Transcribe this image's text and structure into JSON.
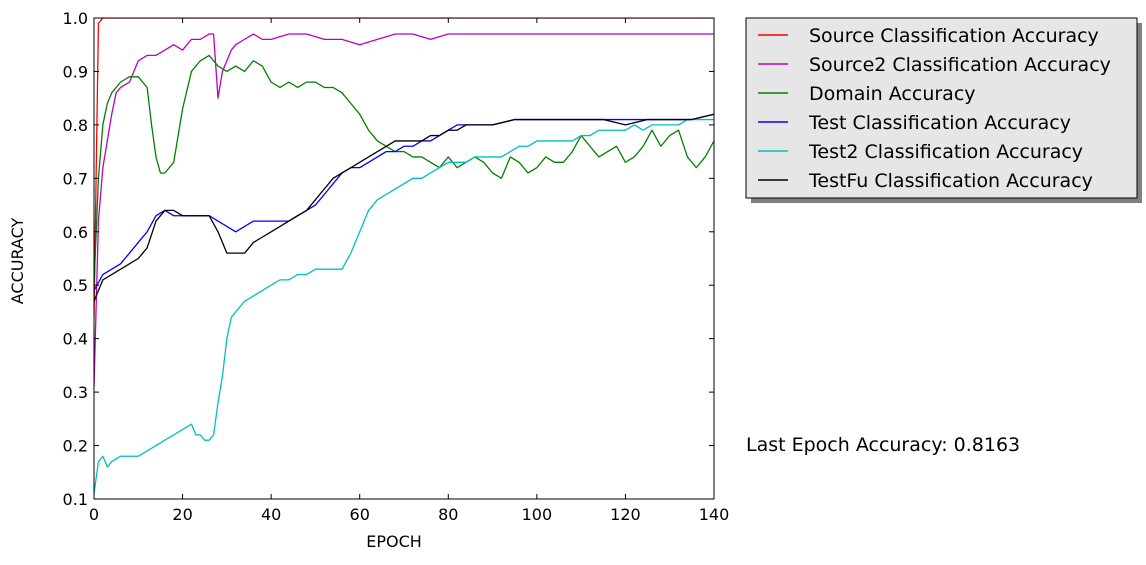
{
  "chart_data": {
    "type": "line",
    "title": "",
    "xlabel": "EPOCH",
    "ylabel": "ACCURACY",
    "xlim": [
      0,
      140
    ],
    "ylim": [
      0.1,
      1.0
    ],
    "x_ticks": [
      "0",
      "20",
      "40",
      "60",
      "80",
      "100",
      "120",
      "140"
    ],
    "y_ticks": [
      "0.1",
      "0.2",
      "0.3",
      "0.4",
      "0.5",
      "0.6",
      "0.7",
      "0.8",
      "0.9",
      "1.0"
    ],
    "grid": false,
    "legend_position": "outside-right-top",
    "legend": [
      "Source Classification Accuracy",
      "Source2 Classification Accuracy",
      "Domain Accuracy",
      "Test Classification Accuracy",
      "Test2 Classification Accuracy",
      "TestFu Classification Accuracy"
    ],
    "annotation": "Last Epoch Accuracy: 0.8163",
    "series": [
      {
        "name": "Source Classification Accuracy",
        "color": "#ff0000",
        "x": [
          0,
          1,
          2,
          3,
          4,
          5,
          10,
          20,
          40,
          60,
          80,
          100,
          120,
          140
        ],
        "values": [
          0.44,
          0.99,
          1.0,
          1.0,
          1.0,
          1.0,
          1.0,
          1.0,
          1.0,
          1.0,
          1.0,
          1.0,
          1.0,
          1.0
        ]
      },
      {
        "name": "Source2 Classification Accuracy",
        "color": "#bf00bf",
        "x": [
          0,
          1,
          2,
          3,
          4,
          5,
          6,
          8,
          10,
          12,
          14,
          16,
          18,
          20,
          22,
          24,
          26,
          27,
          28,
          29,
          30,
          31,
          32,
          34,
          36,
          38,
          40,
          44,
          48,
          52,
          56,
          60,
          64,
          68,
          72,
          76,
          80,
          90,
          100,
          110,
          120,
          130,
          135,
          140
        ],
        "values": [
          0.31,
          0.62,
          0.72,
          0.77,
          0.82,
          0.86,
          0.87,
          0.88,
          0.92,
          0.93,
          0.93,
          0.94,
          0.95,
          0.94,
          0.96,
          0.96,
          0.97,
          0.97,
          0.85,
          0.9,
          0.92,
          0.94,
          0.95,
          0.96,
          0.97,
          0.96,
          0.96,
          0.97,
          0.97,
          0.96,
          0.96,
          0.95,
          0.96,
          0.97,
          0.97,
          0.96,
          0.97,
          0.97,
          0.97,
          0.97,
          0.97,
          0.97,
          0.97,
          0.97
        ]
      },
      {
        "name": "Domain Accuracy",
        "color": "#008000",
        "x": [
          0,
          1,
          2,
          3,
          4,
          6,
          8,
          10,
          11,
          12,
          13,
          14,
          15,
          16,
          17,
          18,
          20,
          22,
          24,
          26,
          27,
          28,
          30,
          32,
          34,
          36,
          38,
          40,
          42,
          44,
          46,
          48,
          50,
          52,
          54,
          56,
          58,
          60,
          62,
          64,
          66,
          68,
          70,
          72,
          74,
          76,
          78,
          80,
          82,
          84,
          86,
          88,
          90,
          92,
          94,
          96,
          98,
          100,
          102,
          104,
          106,
          108,
          110,
          112,
          114,
          116,
          118,
          120,
          122,
          124,
          126,
          128,
          130,
          132,
          134,
          136,
          138,
          140
        ],
        "values": [
          0.5,
          0.7,
          0.8,
          0.84,
          0.86,
          0.88,
          0.89,
          0.89,
          0.88,
          0.87,
          0.8,
          0.74,
          0.71,
          0.71,
          0.72,
          0.73,
          0.83,
          0.9,
          0.92,
          0.93,
          0.92,
          0.91,
          0.9,
          0.91,
          0.9,
          0.92,
          0.91,
          0.88,
          0.87,
          0.88,
          0.87,
          0.88,
          0.88,
          0.87,
          0.87,
          0.86,
          0.84,
          0.82,
          0.79,
          0.77,
          0.76,
          0.75,
          0.75,
          0.74,
          0.74,
          0.73,
          0.72,
          0.74,
          0.72,
          0.73,
          0.74,
          0.73,
          0.71,
          0.7,
          0.74,
          0.73,
          0.71,
          0.72,
          0.74,
          0.73,
          0.73,
          0.75,
          0.78,
          0.76,
          0.74,
          0.75,
          0.76,
          0.73,
          0.74,
          0.76,
          0.79,
          0.76,
          0.78,
          0.79,
          0.74,
          0.72,
          0.74,
          0.77
        ]
      },
      {
        "name": "Test Classification Accuracy",
        "color": "#0000ff",
        "x": [
          0,
          2,
          4,
          6,
          8,
          10,
          12,
          14,
          16,
          18,
          20,
          22,
          24,
          26,
          28,
          30,
          32,
          34,
          36,
          38,
          40,
          42,
          44,
          46,
          48,
          50,
          52,
          54,
          56,
          58,
          60,
          62,
          64,
          66,
          68,
          70,
          72,
          74,
          76,
          78,
          80,
          82,
          84,
          86,
          88,
          90,
          95,
          100,
          105,
          110,
          115,
          120,
          125,
          130,
          135,
          140
        ],
        "values": [
          0.49,
          0.52,
          0.53,
          0.54,
          0.56,
          0.58,
          0.6,
          0.63,
          0.64,
          0.63,
          0.63,
          0.63,
          0.63,
          0.63,
          0.62,
          0.61,
          0.6,
          0.61,
          0.62,
          0.62,
          0.62,
          0.62,
          0.62,
          0.63,
          0.64,
          0.65,
          0.67,
          0.69,
          0.71,
          0.72,
          0.72,
          0.73,
          0.74,
          0.75,
          0.75,
          0.76,
          0.76,
          0.77,
          0.77,
          0.78,
          0.79,
          0.8,
          0.8,
          0.8,
          0.8,
          0.8,
          0.81,
          0.81,
          0.81,
          0.81,
          0.81,
          0.81,
          0.81,
          0.81,
          0.81,
          0.82
        ]
      },
      {
        "name": "Test2 Classification Accuracy",
        "color": "#00bfbf",
        "x": [
          0,
          1,
          2,
          3,
          4,
          6,
          8,
          10,
          12,
          14,
          16,
          18,
          20,
          22,
          23,
          24,
          25,
          26,
          27,
          28,
          29,
          30,
          31,
          32,
          34,
          36,
          38,
          40,
          42,
          44,
          46,
          48,
          50,
          52,
          54,
          56,
          58,
          60,
          62,
          64,
          66,
          68,
          70,
          72,
          74,
          76,
          78,
          80,
          82,
          84,
          86,
          88,
          90,
          92,
          94,
          96,
          98,
          100,
          102,
          104,
          106,
          108,
          110,
          112,
          114,
          116,
          118,
          120,
          122,
          124,
          126,
          128,
          130,
          132,
          134,
          136,
          138,
          140
        ],
        "values": [
          0.11,
          0.17,
          0.18,
          0.16,
          0.17,
          0.18,
          0.18,
          0.18,
          0.19,
          0.2,
          0.21,
          0.22,
          0.23,
          0.24,
          0.22,
          0.22,
          0.21,
          0.21,
          0.22,
          0.28,
          0.33,
          0.4,
          0.44,
          0.45,
          0.47,
          0.48,
          0.49,
          0.5,
          0.51,
          0.51,
          0.52,
          0.52,
          0.53,
          0.53,
          0.53,
          0.53,
          0.56,
          0.6,
          0.64,
          0.66,
          0.67,
          0.68,
          0.69,
          0.7,
          0.7,
          0.71,
          0.72,
          0.73,
          0.73,
          0.73,
          0.74,
          0.74,
          0.74,
          0.74,
          0.75,
          0.76,
          0.76,
          0.77,
          0.77,
          0.77,
          0.77,
          0.77,
          0.78,
          0.78,
          0.79,
          0.79,
          0.79,
          0.79,
          0.8,
          0.79,
          0.8,
          0.8,
          0.8,
          0.8,
          0.81,
          0.81,
          0.81,
          0.81
        ]
      },
      {
        "name": "TestFu Classification Accuracy",
        "color": "#000000",
        "x": [
          0,
          2,
          4,
          6,
          8,
          10,
          12,
          14,
          16,
          18,
          20,
          22,
          24,
          26,
          28,
          30,
          32,
          34,
          36,
          38,
          40,
          42,
          44,
          46,
          48,
          50,
          52,
          54,
          56,
          58,
          60,
          62,
          64,
          66,
          68,
          70,
          72,
          74,
          76,
          78,
          80,
          82,
          84,
          86,
          88,
          90,
          95,
          100,
          105,
          110,
          115,
          120,
          125,
          130,
          135,
          140
        ],
        "values": [
          0.47,
          0.51,
          0.52,
          0.53,
          0.54,
          0.55,
          0.57,
          0.62,
          0.64,
          0.64,
          0.63,
          0.63,
          0.63,
          0.63,
          0.6,
          0.56,
          0.56,
          0.56,
          0.58,
          0.59,
          0.6,
          0.61,
          0.62,
          0.63,
          0.64,
          0.66,
          0.68,
          0.7,
          0.71,
          0.72,
          0.73,
          0.74,
          0.75,
          0.76,
          0.77,
          0.77,
          0.77,
          0.77,
          0.78,
          0.78,
          0.79,
          0.79,
          0.8,
          0.8,
          0.8,
          0.8,
          0.81,
          0.81,
          0.81,
          0.81,
          0.81,
          0.8,
          0.81,
          0.81,
          0.81,
          0.82
        ]
      }
    ]
  }
}
